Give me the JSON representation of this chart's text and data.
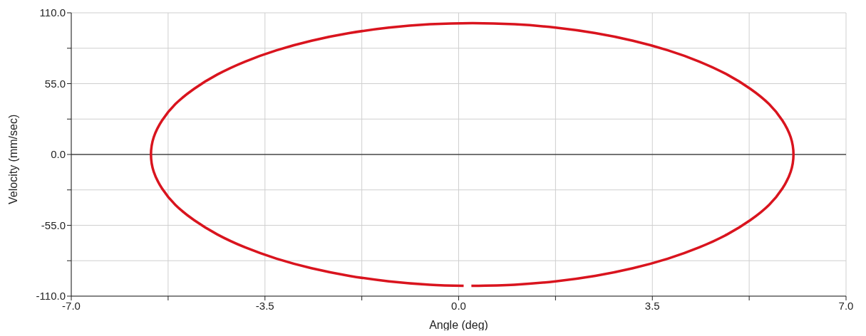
{
  "chart_data": {
    "type": "line",
    "xlabel": "Angle (deg)",
    "ylabel": "Velocity (mm/sec)",
    "xlim": [
      -7,
      7
    ],
    "xticks": [
      {
        "value": -7,
        "label": "-7.0"
      },
      {
        "value": -5.25,
        "label": null
      },
      {
        "value": -3.5,
        "label": "-3.5"
      },
      {
        "value": -1.75,
        "label": null
      },
      {
        "value": 0,
        "label": "0.0"
      },
      {
        "value": 1.75,
        "label": null
      },
      {
        "value": 3.5,
        "label": "3.5"
      },
      {
        "value": 5.25,
        "label": null
      },
      {
        "value": 7,
        "label": "7.0"
      }
    ],
    "ylim": [
      -110,
      110
    ],
    "yticks": [
      {
        "value": -110,
        "label": "-110.0"
      },
      {
        "value": -82.5,
        "label": null
      },
      {
        "value": -55,
        "label": "-55.0"
      },
      {
        "value": -27.5,
        "label": null
      },
      {
        "value": 0,
        "label": "0.0"
      },
      {
        "value": 27.5,
        "label": null
      },
      {
        "value": 55,
        "label": "55.0"
      },
      {
        "value": 82.5,
        "label": null
      },
      {
        "value": 110,
        "label": "110.0"
      }
    ],
    "grid": true,
    "marker": "none",
    "line_style": "solid",
    "ref_lines": [
      {
        "axis": "y",
        "value": 0,
        "color": "#000000"
      }
    ],
    "series": [
      {
        "color": "#d9141e",
        "x": [
          0.23,
          1.01,
          1.75,
          2.47,
          3.15,
          3.78,
          4.35,
          4.85,
          5.27,
          5.61,
          5.85,
          6.0,
          6.05,
          6.0,
          5.85,
          5.61,
          5.27,
          4.85,
          4.35,
          3.78,
          3.15,
          2.47,
          1.75,
          1.01,
          0.25,
          -0.52,
          -1.26,
          -1.98,
          -2.66,
          -3.29,
          -3.86,
          -4.36,
          -4.78,
          -5.12,
          -5.36,
          -5.51,
          -5.56,
          -5.51,
          -5.36,
          -5.12,
          -4.78,
          -4.36,
          -3.86,
          -3.29,
          -2.66,
          -1.98,
          -1.26,
          -0.52,
          0.09
        ],
        "values": [
          -102,
          -101.1,
          -98.5,
          -94.2,
          -88.3,
          -80.9,
          -72.1,
          -62.1,
          -51,
          -39.1,
          -26.4,
          -13.4,
          0,
          13.4,
          26.4,
          39.1,
          51,
          62.1,
          72.1,
          80.9,
          88.3,
          94.2,
          98.5,
          101.1,
          102,
          101.1,
          98.5,
          94.2,
          88.3,
          80.9,
          72.1,
          62.1,
          51,
          39.1,
          26.4,
          13.4,
          0,
          -13.4,
          -26.4,
          -39.1,
          -51,
          -62.1,
          -72.1,
          -80.9,
          -88.3,
          -94.2,
          -98.5,
          -101.1,
          -102
        ]
      }
    ]
  }
}
